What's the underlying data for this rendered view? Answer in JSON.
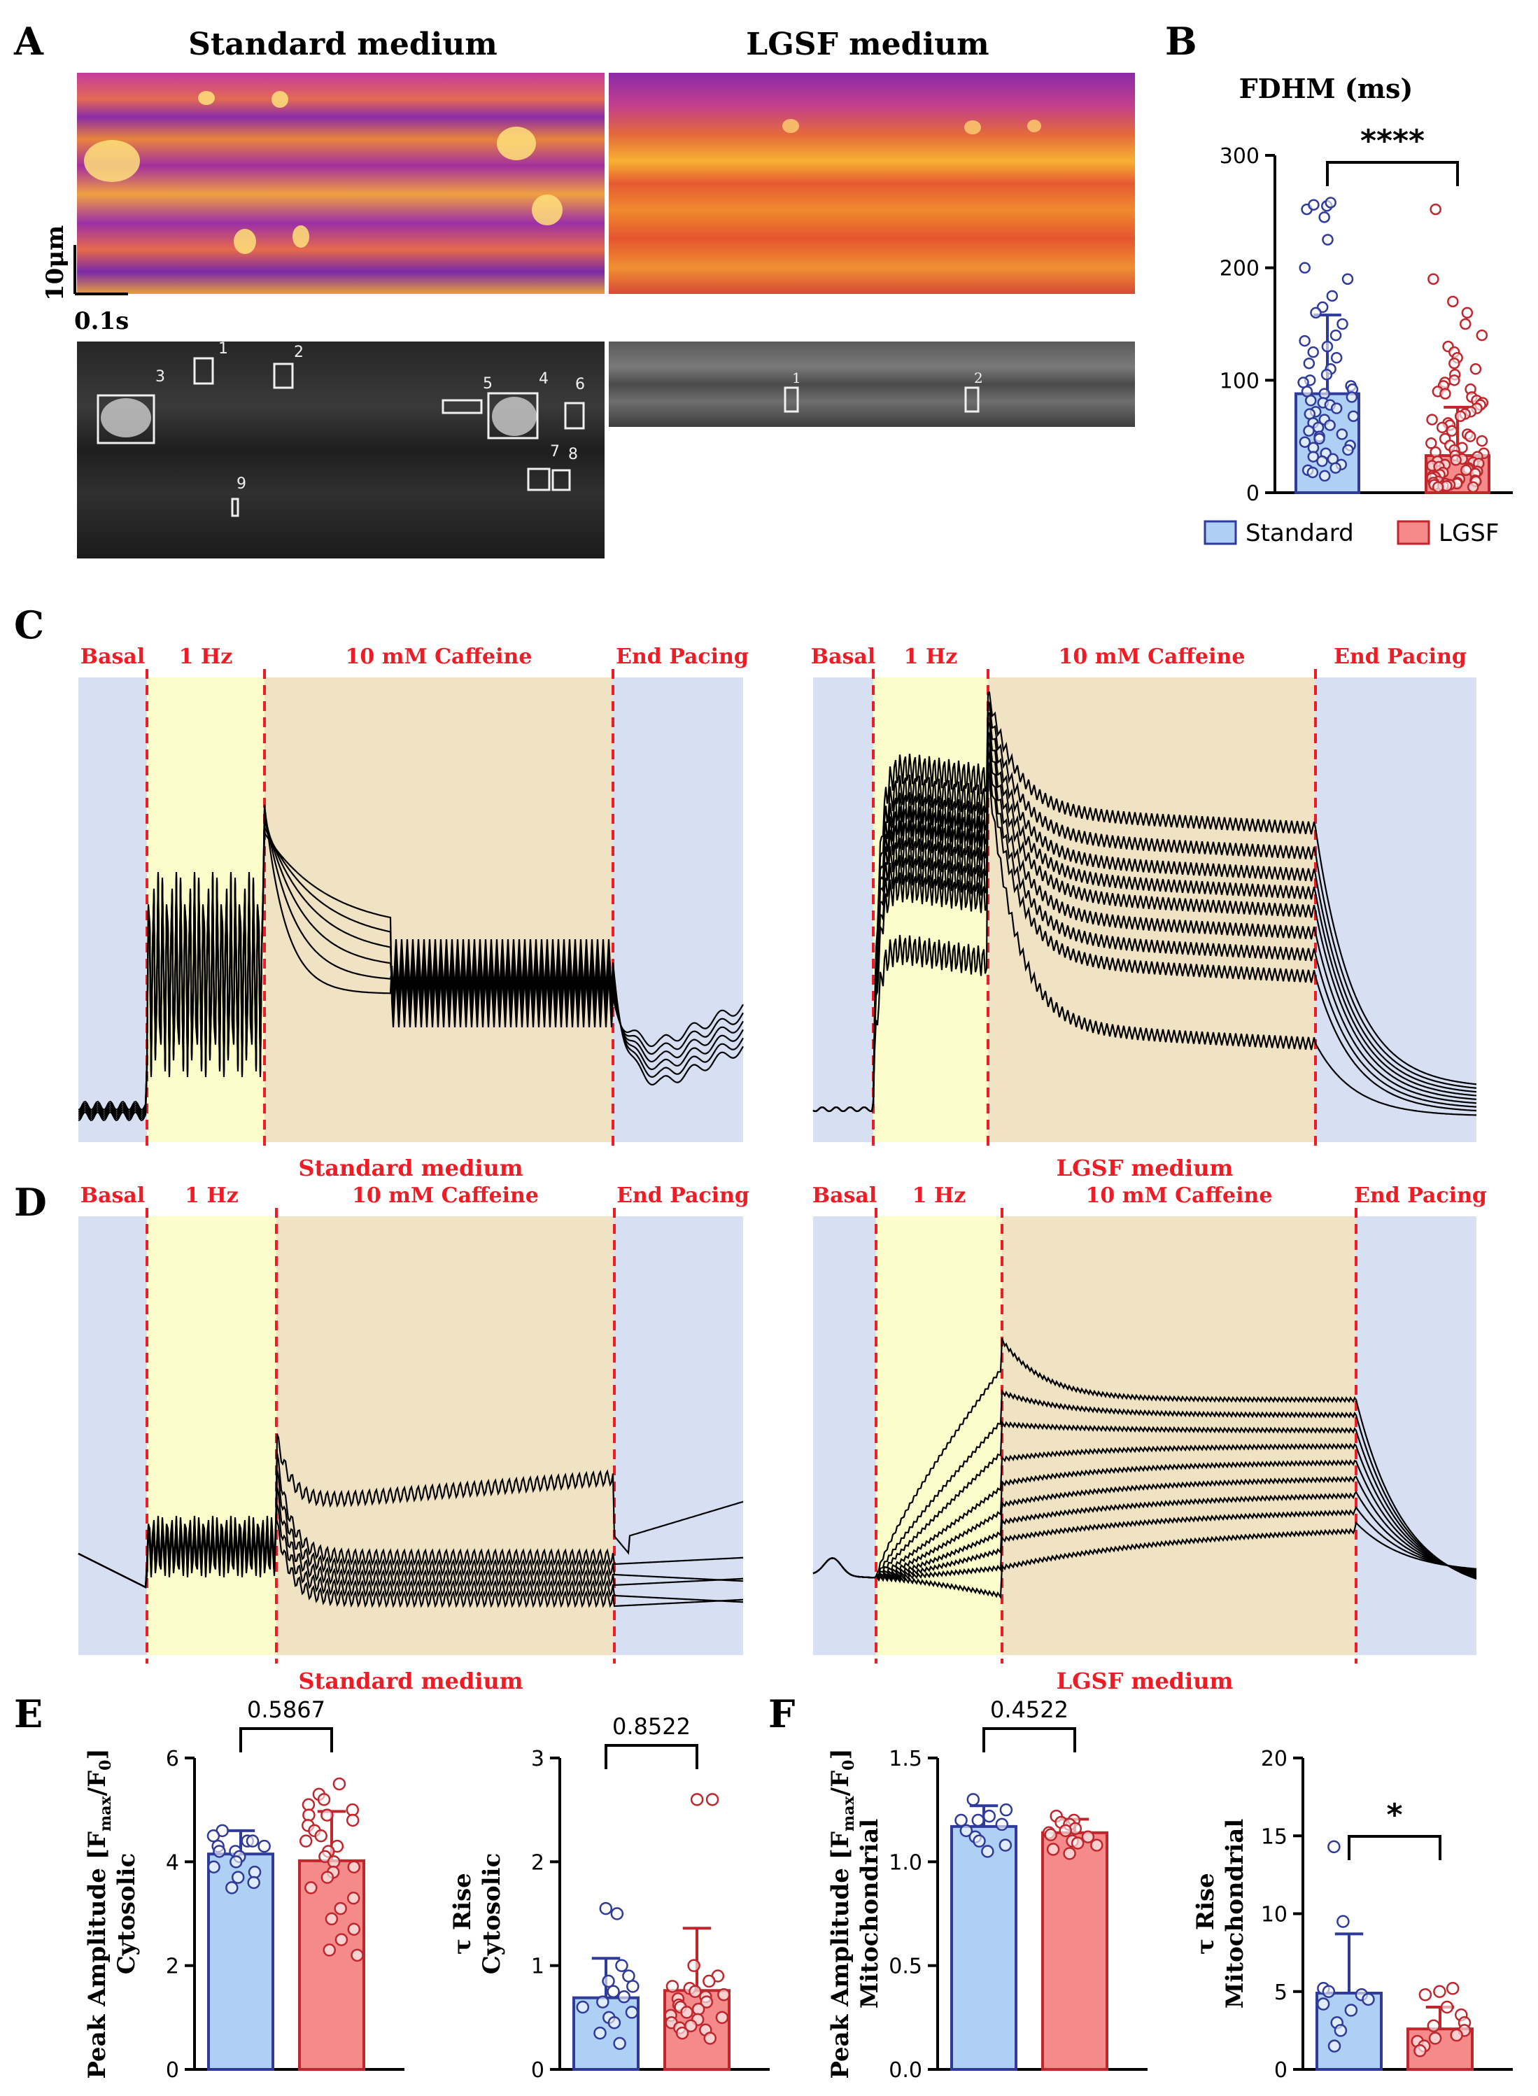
{
  "panel_letters": {
    "A": "A",
    "B": "B",
    "C": "C",
    "D": "D",
    "E": "E",
    "F": "F"
  },
  "colors": {
    "blue": "#2f3b9a",
    "red": "#c0272d",
    "blue_fill": "#aed0f5",
    "red_fill": "#f48a8a",
    "phase_red": "#ee1c25",
    "basal_bg": "#d6e0f2",
    "hz_bg": "#fdfccb",
    "caff_bg": "#efe3c3"
  },
  "panel_a": {
    "title_standard": "Standard medium",
    "title_lgsf": "LGSF medium",
    "scale_y": "10μm",
    "scale_x": "0.1s",
    "roi_standard": [
      "1",
      "2",
      "3",
      "4",
      "5",
      "6",
      "7",
      "8",
      "9"
    ],
    "roi_lgsf": [
      "1",
      "2"
    ]
  },
  "phases": {
    "basal": "Basal",
    "hz": "1 Hz",
    "caffeine": "10 mM Caffeine",
    "end": "End Pacing"
  },
  "panel_c": {
    "caption_left": "Standard medium",
    "caption_right": "LGSF medium"
  },
  "panel_d": {
    "caption_left": "Standard medium",
    "caption_right": "LGSF medium"
  },
  "legend": {
    "standard": "Standard",
    "lgsf": "LGSF"
  },
  "chart_data": [
    {
      "id": "B",
      "type": "bar",
      "title": "FDHM (ms)",
      "categories": [
        "Standard",
        "LGSF"
      ],
      "values": [
        88,
        33
      ],
      "sd": [
        70,
        43
      ],
      "ylim": [
        0,
        300
      ],
      "yticks": [
        "0",
        "100",
        "200",
        "300"
      ],
      "significance": "****",
      "points": {
        "Standard": [
          255,
          258,
          252,
          256,
          245,
          225,
          200,
          190,
          175,
          165,
          160,
          150,
          140,
          135,
          130,
          125,
          120,
          115,
          110,
          105,
          100,
          98,
          95,
          92,
          90,
          88,
          85,
          82,
          80,
          78,
          75,
          72,
          70,
          68,
          65,
          62,
          60,
          58,
          55,
          52,
          50,
          48,
          45,
          42,
          40,
          38,
          35,
          32,
          30,
          28,
          25,
          22,
          20,
          18,
          15
        ],
        "LGSF": [
          252,
          190,
          170,
          160,
          150,
          140,
          130,
          125,
          120,
          115,
          110,
          105,
          100,
          98,
          95,
          92,
          90,
          88,
          85,
          82,
          80,
          78,
          75,
          72,
          70,
          68,
          65,
          62,
          60,
          58,
          55,
          52,
          50,
          48,
          46,
          44,
          42,
          40,
          38,
          36,
          35,
          33,
          32,
          30,
          29,
          28,
          27,
          26,
          25,
          24,
          23,
          22,
          21,
          20,
          19,
          18,
          17,
          16,
          15,
          14,
          13,
          12,
          11,
          10,
          10,
          9,
          9,
          8,
          8,
          7,
          7,
          6,
          6,
          5,
          5
        ]
      }
    },
    {
      "id": "E1",
      "type": "bar",
      "ylabel": "Peak  Amplitude [F_max/F_0]",
      "ylabel_main": "Peak  Amplitude [F",
      "ylabel_sub1": "max",
      "ylabel_mid": "/F",
      "ylabel_sub2": "0",
      "ylabel_end": "]",
      "ylabel2": "Cytosolic",
      "categories": [
        "Standard",
        "LGSF"
      ],
      "values": [
        4.15,
        4.02
      ],
      "sd": [
        0.45,
        0.95
      ],
      "ylim": [
        0,
        6
      ],
      "yticks": [
        "0",
        "2",
        "4",
        "6"
      ],
      "significance": "0.5867",
      "points": {
        "Standard": [
          4.6,
          4.5,
          4.4,
          4.3,
          4.2,
          4.2,
          4.1,
          4.0,
          3.9,
          3.8,
          3.7,
          3.6,
          3.5,
          4.3,
          4.4
        ],
        "LGSF": [
          5.5,
          5.3,
          5.2,
          5.1,
          5.0,
          4.9,
          4.7,
          4.6,
          4.5,
          4.4,
          4.3,
          4.2,
          4.1,
          4.0,
          3.9,
          3.8,
          3.7,
          3.5,
          3.3,
          3.1,
          2.9,
          2.7,
          2.5,
          2.3,
          2.2,
          4.8,
          4.9
        ]
      }
    },
    {
      "id": "E2",
      "type": "bar",
      "ylabel": "τ Rise",
      "ylabel2": "Cytosolic",
      "categories": [
        "Standard",
        "LGSF"
      ],
      "values": [
        0.69,
        0.76
      ],
      "sd": [
        0.38,
        0.6
      ],
      "ylim": [
        0,
        3
      ],
      "yticks": [
        "0",
        "1",
        "2",
        "3"
      ],
      "significance": "0.8522",
      "points": {
        "Standard": [
          1.55,
          1.5,
          1.0,
          0.9,
          0.85,
          0.8,
          0.75,
          0.7,
          0.65,
          0.6,
          0.55,
          0.5,
          0.45,
          0.35,
          0.25
        ],
        "LGSF": [
          2.6,
          2.6,
          1.0,
          0.9,
          0.85,
          0.8,
          0.78,
          0.75,
          0.72,
          0.7,
          0.68,
          0.65,
          0.62,
          0.6,
          0.58,
          0.55,
          0.52,
          0.5,
          0.48,
          0.45,
          0.42,
          0.4,
          0.38,
          0.35,
          0.3
        ]
      }
    },
    {
      "id": "F1",
      "type": "bar",
      "ylabel": "Peak  Amplitude [F_max/F_0]",
      "ylabel_main": "Peak  Amplitude [F",
      "ylabel_sub1": "max",
      "ylabel_mid": "/F",
      "ylabel_sub2": "0",
      "ylabel_end": "]",
      "ylabel2": "Mitochondrial",
      "categories": [
        "Standard",
        "LGSF"
      ],
      "values": [
        1.17,
        1.14
      ],
      "sd": [
        0.1,
        0.065
      ],
      "ylim": [
        0,
        1.5
      ],
      "yticks": [
        "0.0",
        "0.5",
        "1.0",
        "1.5"
      ],
      "significance": "0.4522",
      "points": {
        "Standard": [
          1.3,
          1.25,
          1.22,
          1.2,
          1.18,
          1.15,
          1.12,
          1.1,
          1.08,
          1.05,
          1.2
        ],
        "LGSF": [
          1.22,
          1.2,
          1.19,
          1.18,
          1.16,
          1.15,
          1.14,
          1.13,
          1.12,
          1.1,
          1.09,
          1.08,
          1.06,
          1.04
        ]
      }
    },
    {
      "id": "F2",
      "type": "bar",
      "ylabel": "τ Rise",
      "ylabel2": "Mitochondrial",
      "categories": [
        "Standard",
        "LGSF"
      ],
      "values": [
        4.9,
        2.6
      ],
      "sd": [
        3.8,
        1.4
      ],
      "ylim": [
        0,
        20
      ],
      "yticks": [
        "0",
        "5",
        "10",
        "15",
        "20"
      ],
      "significance": "*",
      "points": {
        "Standard": [
          14.3,
          9.5,
          5.2,
          5.0,
          4.8,
          4.5,
          4.2,
          3.8,
          3.0,
          2.5,
          1.5
        ],
        "LGSF": [
          5.2,
          5.0,
          4.8,
          4.0,
          3.5,
          3.0,
          2.8,
          2.5,
          2.2,
          2.0,
          1.8,
          1.5,
          1.2
        ]
      }
    }
  ]
}
